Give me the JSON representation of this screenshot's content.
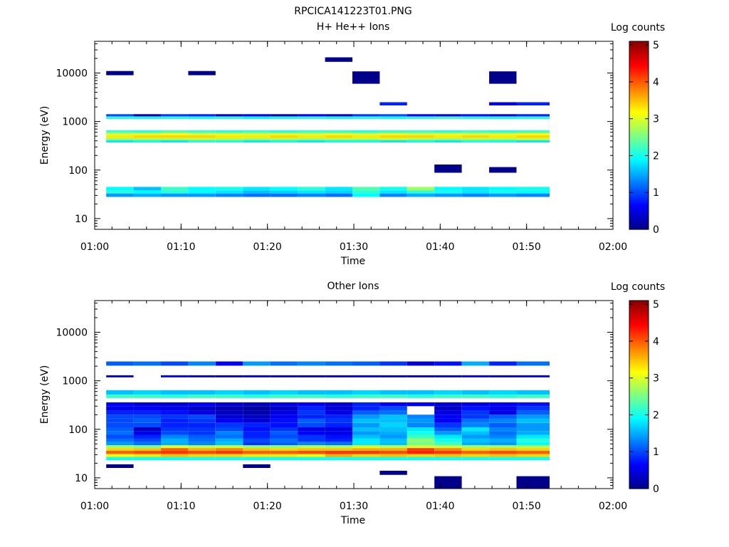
{
  "figure": {
    "title": "RPCICA141223T01.PNG"
  },
  "colorscale": [
    "#00008b",
    "#0000ff",
    "#0080ff",
    "#00ffff",
    "#80ff80",
    "#ffff00",
    "#ff8000",
    "#ff0000",
    "#8b0000"
  ],
  "chart_data": [
    {
      "type": "heatmap",
      "title": "H+ He++ Ions",
      "xlabel": "Time",
      "ylabel": "Energy (eV)",
      "colorbar_label": "Log counts",
      "colorbar_range": [
        0,
        5.1
      ],
      "colorbar_ticks": [
        "0",
        "1",
        "2",
        "3",
        "4",
        "5"
      ],
      "xlim": [
        "01:00",
        "02:00"
      ],
      "x_ticks": [
        "01:00",
        "01:10",
        "01:20",
        "01:30",
        "01:40",
        "01:50",
        "02:00"
      ],
      "ylim": [
        6,
        45000
      ],
      "y_scale": "log",
      "y_ticks": [
        {
          "v": 10,
          "label": "10"
        },
        {
          "v": 100,
          "label": "100"
        },
        {
          "v": 1000,
          "label": "1000"
        },
        {
          "v": 10000,
          "label": "10000"
        }
      ],
      "time_bins": [
        "01:01:20",
        "01:04:30",
        "01:07:40",
        "01:10:50",
        "01:14:00",
        "01:17:10",
        "01:20:20",
        "01:23:30",
        "01:26:40",
        "01:29:50",
        "01:33:00",
        "01:36:10",
        "01:39:20",
        "01:42:30",
        "01:45:40",
        "01:48:50",
        "01:52:40"
      ],
      "energy_bands": [
        {
          "e_low": 28,
          "e_high": 33,
          "values": [
            1.4,
            1.5,
            1.4,
            1.4,
            1.3,
            1.2,
            1.2,
            1.3,
            1.2,
            1.9,
            1.3,
            1.5,
            1.4,
            1.3,
            1.4,
            1.3
          ]
        },
        {
          "e_low": 33,
          "e_high": 38,
          "values": [
            2.1,
            1.9,
            2.1,
            1.9,
            1.8,
            1.6,
            1.7,
            1.8,
            1.7,
            2.1,
            1.8,
            2.1,
            2.0,
            1.8,
            2.0,
            1.9
          ]
        },
        {
          "e_low": 38,
          "e_high": 45,
          "values": [
            1.9,
            1.6,
            2.2,
            1.9,
            2.0,
            1.8,
            1.9,
            2.1,
            1.8,
            2.3,
            2.0,
            2.7,
            1.9,
            1.8,
            1.9,
            2.0
          ]
        },
        {
          "e_low": 370,
          "e_high": 410,
          "values": [
            1.8,
            1.9,
            1.8,
            2.0,
            2.0,
            1.8,
            1.9,
            1.8,
            1.9,
            1.9,
            1.8,
            1.9,
            1.8,
            2.0,
            1.9,
            1.8
          ]
        },
        {
          "e_low": 410,
          "e_high": 460,
          "values": [
            2.7,
            2.8,
            2.8,
            2.9,
            2.8,
            2.7,
            2.8,
            2.7,
            2.8,
            2.8,
            2.9,
            2.8,
            2.7,
            2.8,
            2.8,
            2.9
          ]
        },
        {
          "e_low": 460,
          "e_high": 520,
          "values": [
            3.3,
            3.4,
            3.4,
            3.4,
            3.3,
            3.3,
            3.4,
            3.3,
            3.4,
            3.3,
            3.4,
            3.4,
            3.3,
            3.4,
            3.3,
            3.4
          ]
        },
        {
          "e_low": 520,
          "e_high": 580,
          "values": [
            3.0,
            3.1,
            3.2,
            3.0,
            3.1,
            3.0,
            3.1,
            3.0,
            3.1,
            3.0,
            3.1,
            3.0,
            3.1,
            3.0,
            3.1,
            3.2
          ]
        },
        {
          "e_low": 580,
          "e_high": 660,
          "values": [
            2.2,
            2.1,
            2.3,
            2.2,
            2.1,
            2.2,
            2.1,
            2.2,
            2.2,
            2.1,
            2.2,
            2.2,
            2.1,
            2.2,
            2.1,
            2.2
          ]
        },
        {
          "e_low": 1130,
          "e_high": 1280,
          "values": [
            2.1,
            2.0,
            2.1,
            2.0,
            2.1,
            1.9,
            2.0,
            2.1,
            2.0,
            2.1,
            2.0,
            2.1,
            2.2,
            2.1,
            2.0,
            2.1
          ]
        },
        {
          "e_low": 1280,
          "e_high": 1420,
          "values": [
            1.0,
            0.2,
            0.9,
            0.8,
            0.3,
            0.5,
            0.2,
            0.6,
            0.3,
            0.9,
            1.0,
            0.6,
            0.4,
            0.7,
            0.4,
            0.8
          ]
        },
        {
          "e_low": 2150,
          "e_high": 2500,
          "values": [
            null,
            null,
            null,
            null,
            null,
            null,
            null,
            null,
            null,
            null,
            0.8,
            null,
            null,
            null,
            0.5,
            0.8
          ]
        }
      ],
      "sparse_marks": [
        {
          "t_bin": 0,
          "e_low": 9000,
          "e_high": 11000
        },
        {
          "t_bin": 3,
          "e_low": 9000,
          "e_high": 11000
        },
        {
          "t_bin": 8,
          "e_low": 17000,
          "e_high": 21000
        },
        {
          "t_bin": 9,
          "e_low": 6000,
          "e_high": 10800
        },
        {
          "t_bin": 14,
          "e_low": 6000,
          "e_high": 10800
        },
        {
          "t_bin": 12,
          "e_low": 88,
          "e_high": 130
        },
        {
          "t_bin": 14,
          "e_low": 88,
          "e_high": 115
        }
      ]
    },
    {
      "type": "heatmap",
      "title": "Other Ions",
      "xlabel": "Time",
      "ylabel": "Energy (eV)",
      "colorbar_label": "Log counts",
      "colorbar_range": [
        0,
        5.1
      ],
      "colorbar_ticks": [
        "0",
        "1",
        "2",
        "3",
        "4",
        "5"
      ],
      "xlim": [
        "01:00",
        "02:00"
      ],
      "x_ticks": [
        "01:00",
        "01:10",
        "01:20",
        "01:30",
        "01:40",
        "01:50",
        "02:00"
      ],
      "ylim": [
        6,
        45000
      ],
      "y_scale": "log",
      "y_ticks": [
        {
          "v": 10,
          "label": "10"
        },
        {
          "v": 100,
          "label": "100"
        },
        {
          "v": 1000,
          "label": "1000"
        },
        {
          "v": 10000,
          "label": "10000"
        }
      ],
      "time_bins": [
        "01:01:20",
        "01:04:30",
        "01:07:40",
        "01:10:50",
        "01:14:00",
        "01:17:10",
        "01:20:20",
        "01:23:30",
        "01:26:40",
        "01:29:50",
        "01:33:00",
        "01:36:10",
        "01:39:20",
        "01:42:30",
        "01:45:40",
        "01:48:50",
        "01:52:40"
      ],
      "energy_bands": [
        {
          "e_low": 23,
          "e_high": 27,
          "values": [
            2.0,
            2.0,
            2.0,
            2.0,
            2.0,
            2.0,
            2.0,
            2.0,
            2.0,
            2.0,
            2.0,
            2.0,
            2.0,
            2.0,
            2.0,
            2.0
          ]
        },
        {
          "e_low": 27,
          "e_high": 31,
          "values": [
            3.2,
            3.3,
            3.5,
            3.4,
            3.4,
            3.3,
            3.3,
            3.2,
            3.6,
            3.4,
            3.5,
            3.4,
            3.5,
            3.4,
            3.5,
            3.4
          ]
        },
        {
          "e_low": 31,
          "e_high": 36,
          "values": [
            4.0,
            4.1,
            4.2,
            4.1,
            4.2,
            4.0,
            4.0,
            4.1,
            4.2,
            4.2,
            4.1,
            4.3,
            4.2,
            4.0,
            4.1,
            4.0
          ]
        },
        {
          "e_low": 36,
          "e_high": 41,
          "values": [
            3.4,
            3.5,
            4.0,
            3.6,
            3.8,
            3.5,
            3.4,
            3.5,
            3.5,
            3.6,
            3.6,
            4.2,
            3.8,
            3.4,
            3.5,
            3.4
          ]
        },
        {
          "e_low": 41,
          "e_high": 47,
          "values": [
            2.7,
            2.5,
            3.0,
            2.8,
            2.9,
            2.6,
            2.6,
            2.8,
            2.7,
            3.0,
            2.8,
            3.0,
            2.9,
            2.7,
            2.7,
            2.8
          ]
        },
        {
          "e_low": 47,
          "e_high": 55,
          "values": [
            1.4,
            1.2,
            1.5,
            1.3,
            1.6,
            0.9,
            1.1,
            1.3,
            1.2,
            1.8,
            1.6,
            2.5,
            2.2,
            1.5,
            1.4,
            1.9
          ]
        },
        {
          "e_low": 55,
          "e_high": 65,
          "values": [
            1.2,
            1.0,
            1.5,
            1.2,
            1.5,
            1.0,
            1.2,
            0.9,
            0.8,
            1.8,
            1.6,
            2.6,
            2.0,
            1.6,
            1.5,
            2.1
          ]
        },
        {
          "e_low": 65,
          "e_high": 77,
          "values": [
            1.0,
            0.8,
            1.3,
            1.1,
            1.2,
            0.8,
            1.0,
            0.9,
            0.7,
            1.6,
            1.4,
            2.2,
            1.8,
            1.4,
            1.3,
            1.8
          ]
        },
        {
          "e_low": 77,
          "e_high": 92,
          "values": [
            1.2,
            0.5,
            1.0,
            0.9,
            1.3,
            0.8,
            1.1,
            0.6,
            0.5,
            1.4,
            1.5,
            2.0,
            1.4,
            1.6,
            1.2,
            1.5
          ]
        },
        {
          "e_low": 92,
          "e_high": 110,
          "values": [
            1.1,
            0.3,
            0.9,
            0.9,
            1.0,
            0.7,
            0.9,
            0.5,
            0.5,
            1.6,
            1.6,
            1.8,
            1.1,
            1.8,
            1.3,
            1.4
          ]
        },
        {
          "e_low": 110,
          "e_high": 135,
          "values": [
            1.0,
            1.0,
            0.8,
            0.8,
            0.9,
            0.8,
            0.7,
            1.0,
            0.8,
            1.4,
            1.7,
            1.3,
            0.9,
            1.3,
            1.1,
            1.4
          ]
        },
        {
          "e_low": 135,
          "e_high": 165,
          "values": [
            1.0,
            1.1,
            0.8,
            0.9,
            0.6,
            0.4,
            0.7,
            1.1,
            0.9,
            1.6,
            1.6,
            1.4,
            0.6,
            1.2,
            1.3,
            1.6
          ]
        },
        {
          "e_low": 165,
          "e_high": 200,
          "values": [
            1.0,
            1.0,
            0.9,
            1.0,
            0.4,
            0.3,
            0.6,
            0.8,
            0.8,
            1.4,
            1.6,
            1.3,
            0.6,
            0.9,
            1.1,
            1.4
          ]
        },
        {
          "e_low": 200,
          "e_high": 245,
          "values": [
            0.8,
            0.8,
            0.7,
            0.5,
            0.3,
            0.2,
            0.5,
            0.9,
            0.5,
            1.1,
            1.2,
            null,
            0.5,
            0.9,
            0.5,
            1.1
          ]
        },
        {
          "e_low": 245,
          "e_high": 300,
          "values": [
            0.5,
            0.6,
            0.5,
            0.3,
            0.2,
            0.1,
            0.3,
            0.8,
            0.4,
            0.8,
            1.0,
            null,
            0.3,
            0.7,
            0.5,
            0.9
          ]
        },
        {
          "e_low": 300,
          "e_high": 360,
          "values": [
            0.6,
            0.4,
            0.4,
            0.6,
            0.4,
            0.3,
            0.5,
            0.6,
            0.4,
            0.8,
            0.6,
            0.6,
            0.4,
            0.5,
            0.6,
            0.7
          ]
        },
        {
          "e_low": 440,
          "e_high": 520,
          "values": [
            2.2,
            2.2,
            2.1,
            2.2,
            2.2,
            2.1,
            2.2,
            2.2,
            2.1,
            2.2,
            2.2,
            2.1,
            2.2,
            2.2,
            2.1,
            2.2
          ]
        },
        {
          "e_low": 520,
          "e_high": 640,
          "values": [
            1.6,
            1.7,
            1.6,
            1.6,
            1.7,
            1.6,
            1.7,
            1.6,
            1.6,
            1.7,
            1.6,
            1.6,
            1.7,
            1.6,
            1.7,
            1.6
          ]
        },
        {
          "e_low": 1180,
          "e_high": 1300,
          "values": [
            0.3,
            null,
            0.5,
            0.3,
            0.2,
            0.4,
            0.3,
            0.2,
            0.3,
            0.4,
            0.3,
            0.2,
            0.3,
            0.5,
            0.3,
            0.4
          ]
        },
        {
          "e_low": 2050,
          "e_high": 2500,
          "values": [
            1.1,
            1.2,
            1.0,
            1.3,
            0.6,
            1.4,
            1.2,
            1.3,
            1.2,
            1.1,
            0.9,
            0.4,
            0.7,
            1.5,
            0.8,
            1.2
          ]
        }
      ],
      "sparse_marks": [
        {
          "t_bin": 0,
          "e_low": 16,
          "e_high": 19
        },
        {
          "t_bin": 5,
          "e_low": 16,
          "e_high": 19
        },
        {
          "t_bin": 10,
          "e_low": 11.5,
          "e_high": 14
        },
        {
          "t_bin": 12,
          "e_low": 6,
          "e_high": 10.8
        },
        {
          "t_bin": 15,
          "e_low": 6,
          "e_high": 10.8
        }
      ]
    }
  ]
}
